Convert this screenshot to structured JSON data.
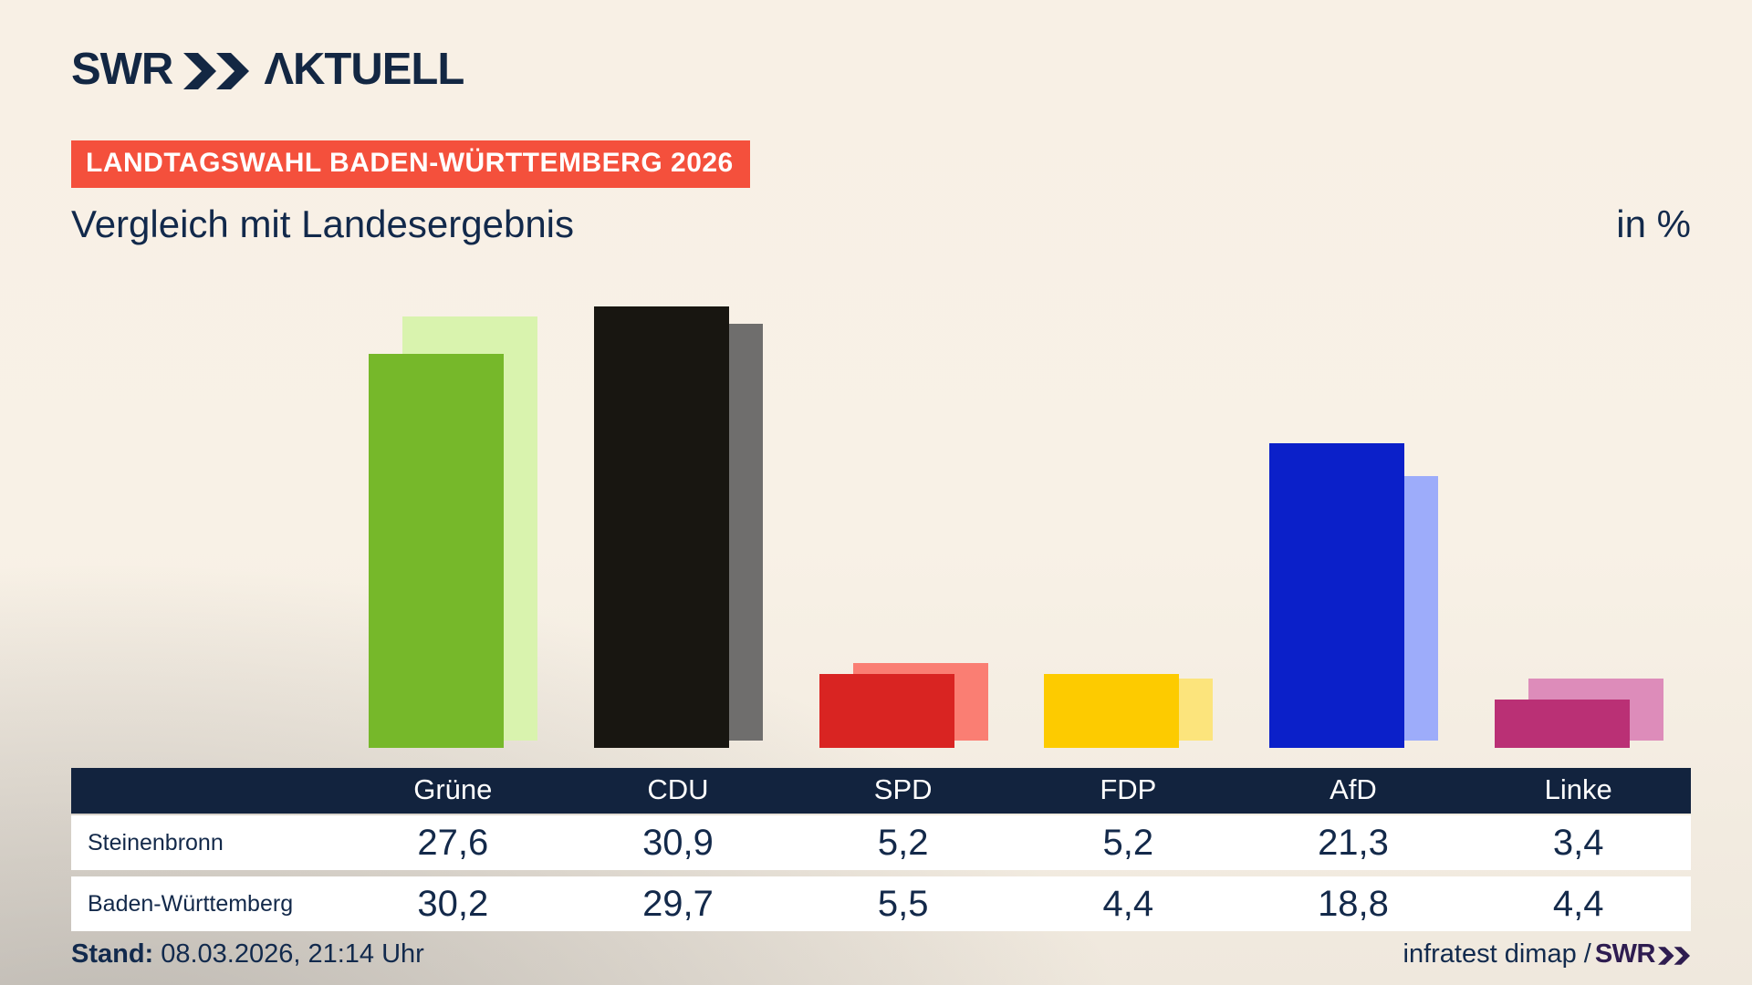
{
  "brand": {
    "name": "SWR",
    "suffix": "ΛKTUELL"
  },
  "badge": {
    "label": "LANDTAGSWAHL BADEN-WÜRTTEMBERG 2026",
    "bg": "#f4503c"
  },
  "title": "Vergleich mit Landesergebnis",
  "unit_label": "in %",
  "chart_data": {
    "type": "bar",
    "title": "Vergleich mit Landesergebnis",
    "unit": "%",
    "categories": [
      "Grüne",
      "CDU",
      "SPD",
      "FDP",
      "AfD",
      "Linke"
    ],
    "series": [
      {
        "name": "Steinenbronn",
        "values": [
          27.6,
          30.9,
          5.2,
          5.2,
          21.3,
          3.4
        ]
      },
      {
        "name": "Baden-Württemberg",
        "values": [
          30.2,
          29.7,
          5.5,
          4.4,
          18.8,
          4.4
        ]
      }
    ],
    "colors_front": [
      "#76b82a",
      "#181611",
      "#d92422",
      "#fdcb00",
      "#0b20c9",
      "#ba3075"
    ],
    "colors_back": [
      "#d9f3ae",
      "#6f6e6d",
      "#fa7e73",
      "#fce47c",
      "#9dacfa",
      "#dd8cba"
    ],
    "ylim": [
      0,
      31
    ],
    "legend_position": "table-below",
    "grid": false
  },
  "table": {
    "header": [
      "Grüne",
      "CDU",
      "SPD",
      "FDP",
      "AfD",
      "Linke"
    ],
    "rows": [
      {
        "label": "Steinenbronn",
        "values": [
          27.6,
          30.9,
          5.2,
          5.2,
          21.3,
          3.4
        ]
      },
      {
        "label": "Baden-Württemberg",
        "values": [
          30.2,
          29.7,
          5.5,
          4.4,
          18.8,
          4.4
        ]
      }
    ],
    "header_bg": "#12233e"
  },
  "footer": {
    "stand_label": "Stand:",
    "stand_value": "08.03.2026, 21:14 Uhr",
    "source_text": "infratest dimap /",
    "source_brand": "SWR"
  }
}
